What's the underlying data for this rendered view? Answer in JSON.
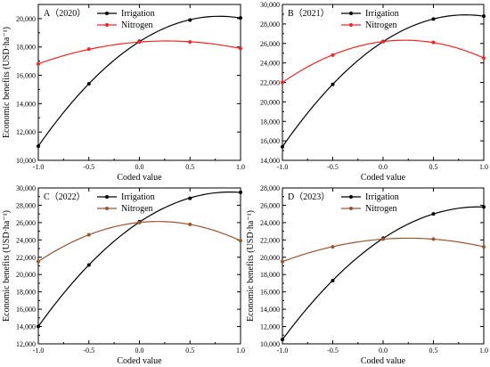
{
  "chart_data": [
    {
      "type": "line",
      "title": "A（2020）",
      "xlabel": "Coded value",
      "ylabel": "Economic benefits (USD·ha⁻¹)",
      "xlim": [
        -1.0,
        1.0
      ],
      "ylim": [
        10000,
        21000
      ],
      "xticks": [
        -1.0,
        -0.5,
        0.0,
        0.5,
        1.0
      ],
      "xtick_labels": [
        "-1.0",
        "-0.5",
        "0.0",
        "0.5",
        "1.0"
      ],
      "yticks": [
        10000,
        12000,
        14000,
        16000,
        18000,
        20000
      ],
      "ytick_labels": [
        "10,000",
        "12,000",
        "14,000",
        "16,000",
        "18,000",
        "20,000"
      ],
      "legend_position": "top-left",
      "grid": false,
      "series": [
        {
          "name": "Irrigation",
          "color": "#000000",
          "x": [
            -1.0,
            -0.5,
            0.0,
            0.5,
            1.0
          ],
          "y": [
            11000,
            15400,
            18400,
            19900,
            20050
          ]
        },
        {
          "name": "Nitrogen",
          "color": "#ff2020",
          "x": [
            -1.0,
            -0.5,
            0.0,
            0.5,
            1.0
          ],
          "y": [
            16800,
            17850,
            18350,
            18350,
            17900
          ]
        }
      ]
    },
    {
      "type": "line",
      "title": "B（2021）",
      "xlabel": "Coded value",
      "ylabel": "",
      "xlim": [
        -1.0,
        1.0
      ],
      "ylim": [
        14000,
        30000
      ],
      "xticks": [
        -1.0,
        -0.5,
        0.0,
        0.5,
        1.0
      ],
      "xtick_labels": [
        "-1.0",
        "-0.5",
        "0.0",
        "0.5",
        "1.0"
      ],
      "yticks": [
        14000,
        16000,
        18000,
        20000,
        22000,
        24000,
        26000,
        28000,
        30000
      ],
      "ytick_labels": [
        "14,000",
        "16,000",
        "18,000",
        "20,000",
        "22,000",
        "24,000",
        "26,000",
        "28,000",
        "30,000"
      ],
      "legend_position": "top-left",
      "grid": false,
      "series": [
        {
          "name": "Irrigation",
          "color": "#000000",
          "x": [
            -1.0,
            -0.5,
            0.0,
            0.5,
            1.0
          ],
          "y": [
            15400,
            21800,
            26200,
            28500,
            28800
          ]
        },
        {
          "name": "Nitrogen",
          "color": "#ff2020",
          "x": [
            -1.0,
            -0.5,
            0.0,
            0.5,
            1.0
          ],
          "y": [
            22000,
            24800,
            26200,
            26100,
            24500
          ]
        }
      ]
    },
    {
      "type": "line",
      "title": "C（2022）",
      "xlabel": "Coded value",
      "ylabel": "Economic benefits (USD·ha⁻¹)",
      "xlim": [
        -1.0,
        1.0
      ],
      "ylim": [
        12000,
        30000
      ],
      "xticks": [
        -1.0,
        -0.5,
        0.0,
        0.5,
        1.0
      ],
      "xtick_labels": [
        "-1.0",
        "-0.5",
        "0.0",
        "0.5",
        "1.0"
      ],
      "yticks": [
        12000,
        14000,
        16000,
        18000,
        20000,
        22000,
        24000,
        26000,
        28000,
        30000
      ],
      "ytick_labels": [
        "12,000",
        "14,000",
        "16,000",
        "18,000",
        "20,000",
        "22,000",
        "24,000",
        "26,000",
        "28,000",
        "30,000"
      ],
      "legend_position": "top-left",
      "grid": false,
      "series": [
        {
          "name": "Irrigation",
          "color": "#000000",
          "x": [
            -1.0,
            -0.5,
            0.0,
            0.5,
            1.0
          ],
          "y": [
            14000,
            21100,
            26100,
            28800,
            29500
          ]
        },
        {
          "name": "Nitrogen",
          "color": "#a0522d",
          "x": [
            -1.0,
            -0.5,
            0.0,
            0.5,
            1.0
          ],
          "y": [
            21500,
            24600,
            26000,
            25800,
            23900
          ]
        }
      ]
    },
    {
      "type": "line",
      "title": "D（2023）",
      "xlabel": "Coded value",
      "ylabel": "Economic benefits (USD·ha⁻¹)",
      "xlim": [
        -1.0,
        1.0
      ],
      "ylim": [
        10000,
        28000
      ],
      "xticks": [
        -1.0,
        -0.5,
        0.0,
        0.5,
        1.0
      ],
      "xtick_labels": [
        "-1.0",
        "-0.5",
        "0.0",
        "0.5",
        "1.0"
      ],
      "yticks": [
        10000,
        12000,
        14000,
        16000,
        18000,
        20000,
        22000,
        24000,
        26000,
        28000
      ],
      "ytick_labels": [
        "10,000",
        "12,000",
        "14,000",
        "16,000",
        "18,000",
        "20,000",
        "22,000",
        "24,000",
        "26,000",
        "28,000"
      ],
      "legend_position": "top-left",
      "grid": false,
      "series": [
        {
          "name": "Irrigation",
          "color": "#000000",
          "x": [
            -1.0,
            -0.5,
            0.0,
            0.5,
            1.0
          ],
          "y": [
            10500,
            17300,
            22200,
            25000,
            25800
          ]
        },
        {
          "name": "Nitrogen",
          "color": "#a0522d",
          "x": [
            -1.0,
            -0.5,
            0.0,
            0.5,
            1.0
          ],
          "y": [
            19500,
            21200,
            22100,
            22100,
            21200
          ]
        }
      ]
    }
  ]
}
